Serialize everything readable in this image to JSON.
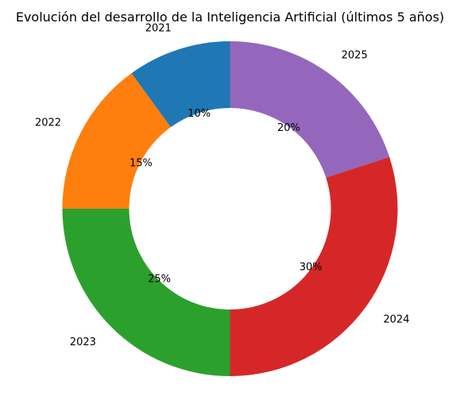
{
  "chart_data": {
    "type": "pie",
    "title": "Evolución del desarrollo de la Inteligencia Artificial (últimos 5 años)",
    "donut": true,
    "start_angle_deg": 90,
    "direction": "counterclockwise",
    "categories": [
      "2021",
      "2022",
      "2023",
      "2024",
      "2025"
    ],
    "values": [
      10,
      15,
      25,
      30,
      20
    ],
    "percent_labels": [
      "10%",
      "15%",
      "25%",
      "30%",
      "20%"
    ],
    "colors": [
      "#1f77b4",
      "#ff7f0e",
      "#2ca02c",
      "#d62728",
      "#9467bd"
    ]
  }
}
